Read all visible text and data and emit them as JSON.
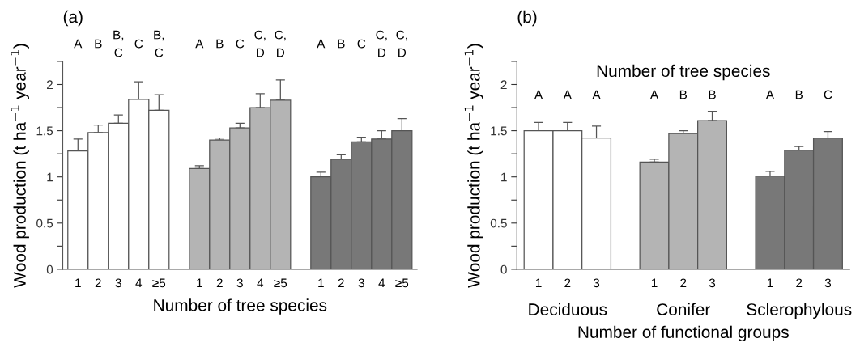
{
  "chart_data": [
    {
      "type": "bar",
      "xlabel": "Number of tree species",
      "ylabel": "Wood production (t ha$^{−1}$ year$^{−1}$)",
      "categories": [
        "1",
        "2",
        "3",
        "4",
        "≥5",
        null,
        "1",
        "2",
        "3",
        "4",
        "≥5",
        null,
        "1",
        "2",
        "3",
        "4",
        "≥5"
      ],
      "values": [
        1.28,
        1.48,
        1.58,
        1.84,
        1.72,
        null,
        1.09,
        1.4,
        1.53,
        1.75,
        1.83,
        null,
        1.0,
        1.19,
        1.38,
        1.41,
        1.5
      ],
      "colors": [
        "#ffffff",
        "#ffffff",
        "#ffffff",
        "#ffffff",
        "#ffffff",
        null,
        "#b4b4b4",
        "#b4b4b4",
        "#b4b4b4",
        "#b4b4b4",
        "#b4b4b4",
        null,
        "#787878",
        "#787878",
        "#787878",
        "#787878",
        "#787878"
      ],
      "errors": [
        [
          1.28,
          1.41
        ],
        [
          1.48,
          1.56
        ],
        [
          1.58,
          1.67
        ],
        [
          1.84,
          2.03
        ],
        [
          1.72,
          1.89
        ],
        null,
        [
          1.09,
          1.12
        ],
        [
          1.4,
          1.42
        ],
        [
          1.53,
          1.58
        ],
        [
          1.75,
          1.9
        ],
        [
          1.83,
          2.05
        ],
        null,
        [
          1.0,
          1.05
        ],
        [
          1.19,
          1.24
        ],
        [
          1.38,
          1.43
        ],
        [
          1.41,
          1.5
        ],
        [
          1.5,
          1.63
        ]
      ],
      "ylim": [
        0,
        2.25
      ],
      "yticks": [
        0,
        {
          "value": 0.25,
          "label": null
        },
        0.5,
        {
          "value": 0.75,
          "label": null
        },
        1,
        {
          "value": 1.25,
          "label": null
        },
        1.5,
        {
          "value": 1.75,
          "label": null
        },
        2,
        {
          "value": 2.25,
          "label": null
        }
      ],
      "annotations": [
        "(a)",
        "A",
        "B",
        "B,\nC",
        "C",
        "B,\nC",
        "A",
        "B",
        "C",
        "C,\nD",
        "C,\nD",
        "A",
        "B",
        "C",
        "C,\nD",
        "C,\nD"
      ]
    },
    {
      "type": "bar",
      "title": "Number of tree species",
      "xlabel": "Number of functional groups",
      "ylabel": "Wood production (t ha$^{−1}$ year$^{−1}$)",
      "categories": [
        "1",
        "2",
        "3",
        null,
        "1",
        "2",
        "3",
        null,
        "1",
        "2",
        "3"
      ],
      "values": [
        1.5,
        1.5,
        1.42,
        null,
        1.16,
        1.47,
        1.61,
        null,
        1.01,
        1.29,
        1.42
      ],
      "colors": [
        "#ffffff",
        "#ffffff",
        "#ffffff",
        null,
        "#b4b4b4",
        "#b4b4b4",
        "#b4b4b4",
        null,
        "#787878",
        "#787878",
        "#787878"
      ],
      "errors": [
        [
          1.5,
          1.59
        ],
        [
          1.5,
          1.59
        ],
        [
          1.42,
          1.55
        ],
        null,
        [
          1.16,
          1.19
        ],
        [
          1.47,
          1.5
        ],
        [
          1.61,
          1.71
        ],
        null,
        [
          1.01,
          1.06
        ],
        [
          1.29,
          1.33
        ],
        [
          1.42,
          1.49
        ]
      ],
      "ylim": [
        0,
        2.25
      ],
      "yticks": [
        0,
        {
          "value": 0.25,
          "label": null
        },
        0.5,
        {
          "value": 0.75,
          "label": null
        },
        1,
        {
          "value": 1.25,
          "label": null
        },
        1.5,
        {
          "value": 1.75,
          "label": null
        },
        2,
        {
          "value": 2.25,
          "label": null
        }
      ],
      "annotations": [
        "(b)",
        "A",
        "A",
        "A",
        "A",
        "B",
        "B",
        "A",
        "B",
        "C",
        "Deciduous",
        "Conifer",
        "Sclerophylous"
      ]
    }
  ]
}
